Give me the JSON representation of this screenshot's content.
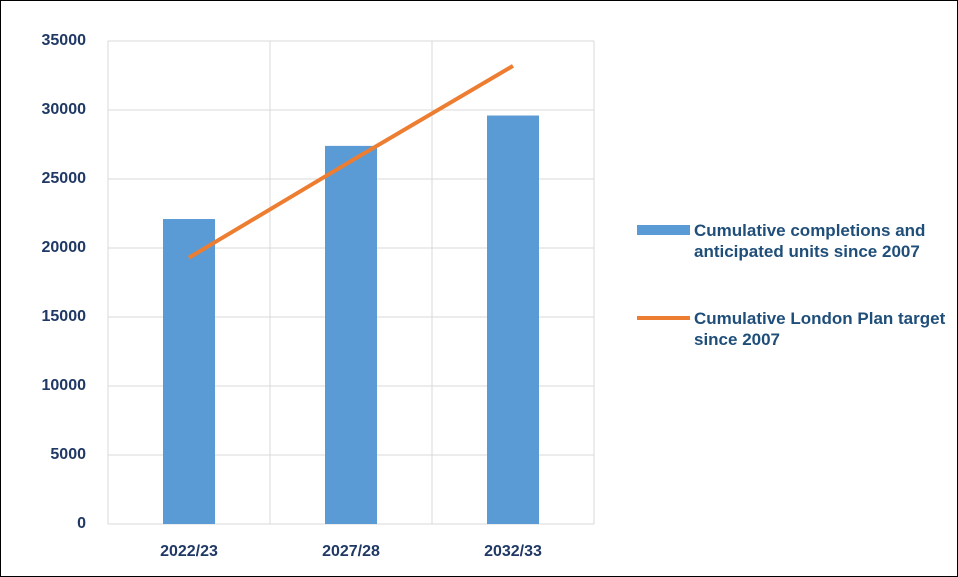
{
  "chart_data": {
    "type": "bar",
    "categories": [
      "2022/23",
      "2027/28",
      "2032/33"
    ],
    "series": [
      {
        "name": "Cumulative completions and anticipated units since 2007",
        "type": "bar",
        "color": "#5b9bd5",
        "values": [
          22100,
          27400,
          29600
        ]
      },
      {
        "name": "Cumulative London Plan target since 2007",
        "type": "line",
        "color": "#ed7d31",
        "values": [
          19300,
          26300,
          33200
        ]
      }
    ],
    "ylim": [
      0,
      35000
    ],
    "yticks": [
      0,
      5000,
      10000,
      15000,
      20000,
      25000,
      30000,
      35000
    ],
    "grid": true,
    "legend": "right"
  }
}
